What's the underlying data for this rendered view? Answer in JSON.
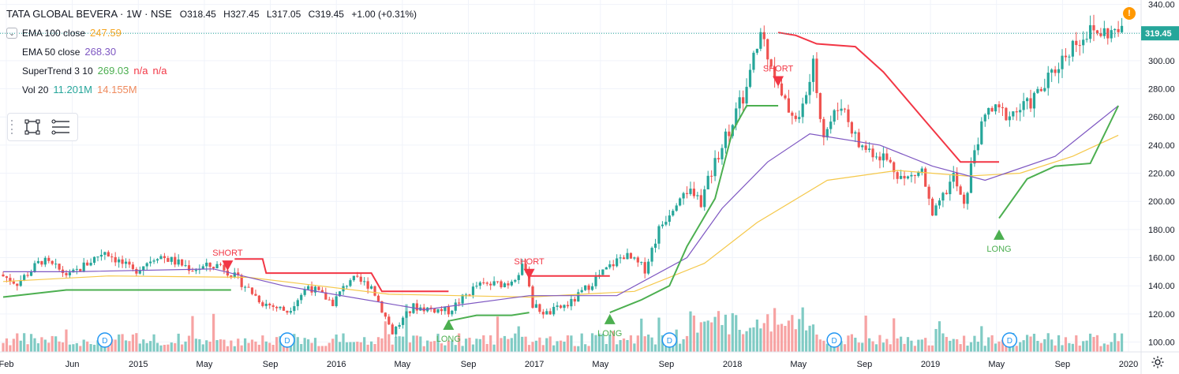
{
  "header": {
    "symbol_title": "TATA GLOBAL BEVERA · 1W · NSE",
    "ohlc": {
      "o": "318.45",
      "h": "327.45",
      "l": "317.05",
      "c": "319.45",
      "change": "+1.00 (+0.31%)"
    },
    "ohlc_labels": {
      "o": "O",
      "h": "H",
      "l": "L",
      "c": "C"
    }
  },
  "indicators": [
    {
      "name": "EMA 100 close",
      "values": [
        "247.59"
      ],
      "colors": [
        "#f5a623"
      ]
    },
    {
      "name": "EMA 50 close",
      "values": [
        "268.30"
      ],
      "colors": [
        "#7e57c2"
      ]
    },
    {
      "name": "SuperTrend 3 10",
      "values": [
        "269.03",
        "n/a",
        "n/a"
      ],
      "colors": [
        "#4caf50",
        "#f23645",
        "#f23645"
      ]
    },
    {
      "name": "Vol 20",
      "values": [
        "11.201M",
        "14.155M"
      ],
      "colors": [
        "#26a69a",
        "#ef8a5d"
      ]
    }
  ],
  "alert_badge": "!",
  "price_label": "319.45",
  "icons": [
    "collapse-chevron-icon",
    "rectangle-tool-icon",
    "lines-tool-icon",
    "settings-gear-icon",
    "alert-icon",
    "dividend-icon"
  ],
  "colors": {
    "up": "#26a69a",
    "down": "#ef5350",
    "vol_up": "#80cbc4",
    "vol_down": "#f7a3a3",
    "ema100": "#f5c84a",
    "ema50": "#7e57c2",
    "st_up": "#4caf50",
    "st_down": "#f23645",
    "price_tag": "#26a69a",
    "grid": "#f0f3fa",
    "text_muted": "#787b86"
  },
  "chart_data": {
    "type": "candlestick",
    "y_axis": {
      "ticks": [
        100,
        120,
        140,
        160,
        180,
        200,
        220,
        240,
        260,
        280,
        300,
        320,
        340
      ],
      "range": [
        93,
        342
      ]
    },
    "x_axis": {
      "ticks": [
        "Feb",
        "Jun",
        "2015",
        "May",
        "Sep",
        "2016",
        "May",
        "Sep",
        "2017",
        "May",
        "Sep",
        "2018",
        "May",
        "Sep",
        "2019",
        "May",
        "Sep",
        "2020"
      ]
    },
    "dividend_marker": "D",
    "dividends": [
      "Jun 2014",
      "Jul 2015",
      "Jul 2017",
      "Jun 2018",
      "Jun 2019"
    ],
    "signals": [
      {
        "label": "SHORT",
        "type": "short",
        "time": "Jun 2015",
        "price": 158
      },
      {
        "label": "LONG",
        "type": "long",
        "time": "Jul 2016",
        "price": 116
      },
      {
        "label": "SHORT",
        "type": "short",
        "time": "Nov 2016",
        "price": 152
      },
      {
        "label": "LONG",
        "type": "long",
        "time": "Mar 2017",
        "price": 120
      },
      {
        "label": "SHORT",
        "type": "short",
        "time": "Mar 2018",
        "price": 289
      },
      {
        "label": "LONG",
        "type": "long",
        "time": "May 2019",
        "price": 180
      }
    ],
    "anchors": [
      [
        0,
        148
      ],
      [
        5,
        142
      ],
      [
        12,
        158
      ],
      [
        20,
        147
      ],
      [
        30,
        165
      ],
      [
        38,
        150
      ],
      [
        45,
        162
      ],
      [
        55,
        152
      ],
      [
        63,
        155
      ],
      [
        70,
        140
      ],
      [
        75,
        128
      ],
      [
        82,
        122
      ],
      [
        88,
        140
      ],
      [
        95,
        128
      ],
      [
        100,
        145
      ],
      [
        106,
        140
      ],
      [
        112,
        107
      ],
      [
        118,
        125
      ],
      [
        128,
        122
      ],
      [
        136,
        140
      ],
      [
        145,
        142
      ],
      [
        150,
        155
      ],
      [
        152,
        126
      ],
      [
        156,
        120
      ],
      [
        163,
        128
      ],
      [
        170,
        145
      ],
      [
        178,
        162
      ],
      [
        184,
        152
      ],
      [
        188,
        180
      ],
      [
        195,
        210
      ],
      [
        200,
        200
      ],
      [
        205,
        235
      ],
      [
        213,
        280
      ],
      [
        217,
        320
      ],
      [
        220,
        300
      ],
      [
        223,
        272
      ],
      [
        228,
        258
      ],
      [
        232,
        295
      ],
      [
        235,
        248
      ],
      [
        240,
        270
      ],
      [
        245,
        240
      ],
      [
        252,
        232
      ],
      [
        258,
        215
      ],
      [
        263,
        222
      ],
      [
        266,
        188
      ],
      [
        270,
        208
      ],
      [
        272,
        218
      ],
      [
        275,
        195
      ],
      [
        278,
        238
      ],
      [
        282,
        265
      ],
      [
        288,
        262
      ],
      [
        293,
        268
      ],
      [
        298,
        282
      ],
      [
        302,
        298
      ],
      [
        306,
        312
      ],
      [
        310,
        320
      ]
    ],
    "supertrend": [
      {
        "dir": "up",
        "points": [
          [
            0,
            132
          ],
          [
            18,
            137
          ],
          [
            65,
            137
          ]
        ]
      },
      {
        "dir": "down",
        "points": [
          [
            66,
            159
          ],
          [
            74,
            159
          ],
          [
            75,
            149
          ],
          [
            105,
            149
          ],
          [
            108,
            136
          ],
          [
            127,
            136
          ]
        ]
      },
      {
        "dir": "up",
        "points": [
          [
            127,
            115
          ],
          [
            135,
            119
          ],
          [
            145,
            119
          ],
          [
            150,
            121
          ]
        ]
      },
      {
        "dir": "down",
        "points": [
          [
            150,
            147
          ],
          [
            173,
            147
          ]
        ]
      },
      {
        "dir": "up",
        "points": [
          [
            173,
            121
          ],
          [
            182,
            130
          ],
          [
            190,
            140
          ],
          [
            195,
            168
          ],
          [
            203,
            202
          ],
          [
            208,
            250
          ],
          [
            212,
            268
          ],
          [
            221,
            268
          ]
        ]
      },
      {
        "dir": "down",
        "points": [
          [
            221,
            320
          ],
          [
            226,
            318
          ],
          [
            232,
            312
          ],
          [
            243,
            310
          ],
          [
            251,
            292
          ],
          [
            263,
            257
          ],
          [
            273,
            228
          ],
          [
            284,
            228
          ]
        ]
      },
      {
        "dir": "up",
        "points": [
          [
            284,
            188
          ],
          [
            292,
            216
          ],
          [
            300,
            225
          ],
          [
            310,
            227
          ],
          [
            318,
            268
          ]
        ]
      }
    ],
    "ema50": [
      [
        0,
        150
      ],
      [
        20,
        150
      ],
      [
        60,
        152
      ],
      [
        80,
        140
      ],
      [
        120,
        123
      ],
      [
        150,
        133
      ],
      [
        175,
        133
      ],
      [
        195,
        160
      ],
      [
        205,
        195
      ],
      [
        218,
        228
      ],
      [
        230,
        248
      ],
      [
        250,
        240
      ],
      [
        265,
        225
      ],
      [
        280,
        215
      ],
      [
        300,
        232
      ],
      [
        318,
        268
      ]
    ],
    "ema100": [
      [
        0,
        143
      ],
      [
        30,
        147
      ],
      [
        70,
        146
      ],
      [
        110,
        134
      ],
      [
        150,
        132
      ],
      [
        180,
        136
      ],
      [
        200,
        156
      ],
      [
        215,
        185
      ],
      [
        235,
        215
      ],
      [
        255,
        222
      ],
      [
        275,
        218
      ],
      [
        290,
        220
      ],
      [
        305,
        232
      ],
      [
        318,
        247
      ]
    ],
    "last_close": 319.45
  }
}
